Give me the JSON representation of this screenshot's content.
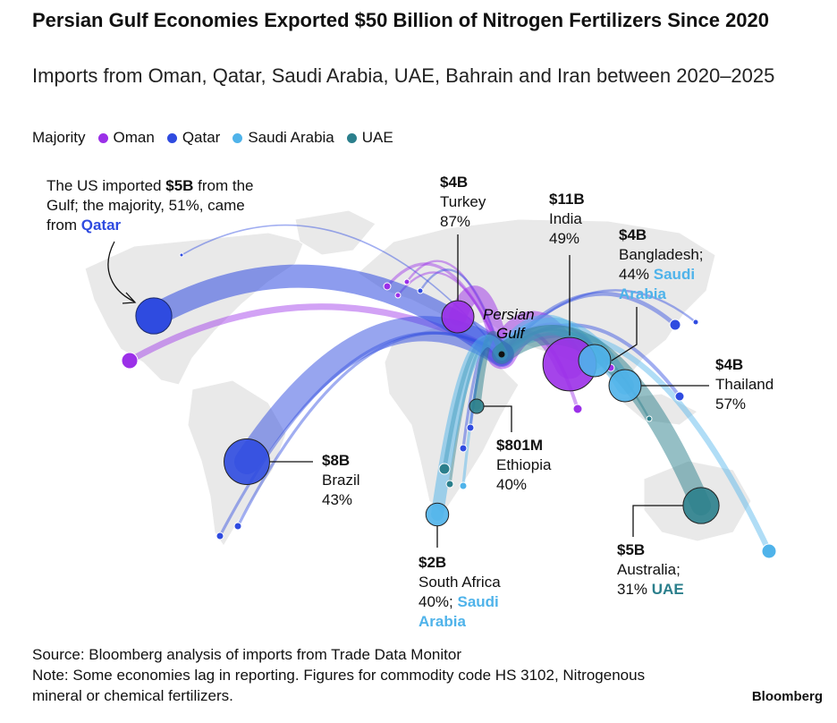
{
  "header": {
    "title": "Persian Gulf Economies Exported $50 Billion of Nitrogen Fertilizers Since 2020",
    "subtitle": "Imports from Oman, Qatar, Saudi Arabia, UAE, Bahrain and Iran between 2020–2025"
  },
  "legend": {
    "label": "Majority",
    "items": [
      {
        "name": "Oman",
        "color": "#9b30e8"
      },
      {
        "name": "Qatar",
        "color": "#2f4be0"
      },
      {
        "name": "Saudi Arabia",
        "color": "#4fb3ea"
      },
      {
        "name": "UAE",
        "color": "#2b7f8c"
      }
    ]
  },
  "origin": {
    "label": "Persian Gulf"
  },
  "us_note": {
    "parts": [
      "The US imported ",
      "$5B",
      " from the Gulf; the majority, 51%, came from ",
      "Qatar"
    ],
    "value": 5,
    "color": "#2f4be0"
  },
  "callouts": [
    {
      "amount": "$4B",
      "value": 4,
      "country": "Turkey",
      "share": "87%",
      "color": "#9b30e8"
    },
    {
      "amount": "$11B",
      "value": 11,
      "country": "India",
      "share": "49%",
      "color": "#9b30e8"
    },
    {
      "amount": "$4B",
      "value": 4,
      "country": "Bangladesh;",
      "share": "44%",
      "majority": "Saudi Arabia",
      "color": "#4fb3ea"
    },
    {
      "amount": "$4B",
      "value": 4,
      "country": "Thailand",
      "share": "57%",
      "color": "#4fb3ea"
    },
    {
      "amount": "$8B",
      "value": 8,
      "country": "Brazil",
      "share": "43%",
      "color": "#2f4be0"
    },
    {
      "amount": "$801M",
      "value": 0.801,
      "country": "Ethiopia",
      "share": "40%",
      "color": "#2b7f8c"
    },
    {
      "amount": "$2B",
      "value": 2,
      "country": "South Africa",
      "share": "40%;",
      "majority": "Saudi Arabia",
      "color": "#4fb3ea"
    },
    {
      "amount": "$5B",
      "value": 5,
      "country": "Australia;",
      "share": "31%",
      "majority": "UAE",
      "color": "#2b7f8c"
    }
  ],
  "footer": {
    "source": "Source: Bloomberg analysis of imports from Trade Data Monitor",
    "note": "Note: Some economies lag in reporting. Figures for commodity code HS 3102, Nitrogenous mineral or chemical fertilizers.",
    "brand": "Bloomberg"
  }
}
